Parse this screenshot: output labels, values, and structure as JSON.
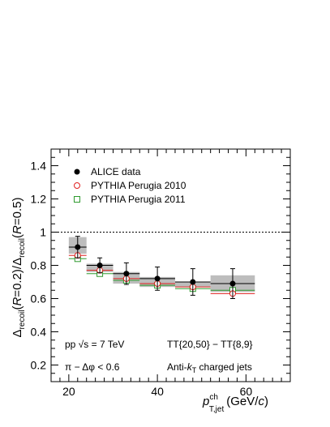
{
  "chart_data": {
    "type": "scatter",
    "xlim": [
      16,
      70
    ],
    "ylim": [
      0.1,
      1.5
    ],
    "x_ticks": [
      20,
      40,
      60
    ],
    "y_ticks": [
      0.2,
      0.4,
      0.6,
      0.8,
      1,
      1.2,
      1.4
    ],
    "xlabel": "p_T,jet^ch (GeV/c)",
    "ylabel": "Δrecoil(R=0.2)/Δrecoil(R=0.5)",
    "reference_line": 1,
    "legend_position": "top-left",
    "series": [
      {
        "name": "ALICE data",
        "marker": "filled-circle",
        "color": "#000000",
        "points": [
          {
            "x": 22.0,
            "xlo": 20,
            "xhi": 24,
            "y": 0.91,
            "stat": 0.065,
            "syslo": 0.87,
            "syshi": 0.97
          },
          {
            "x": 27.0,
            "xlo": 24,
            "xhi": 30,
            "y": 0.8,
            "stat": 0.045,
            "syslo": 0.76,
            "syshi": 0.81
          },
          {
            "x": 33.0,
            "xlo": 30,
            "xhi": 36,
            "y": 0.75,
            "stat": 0.065,
            "syslo": 0.69,
            "syshi": 0.76
          },
          {
            "x": 40.0,
            "xlo": 36,
            "xhi": 44,
            "y": 0.72,
            "stat": 0.07,
            "syslo": 0.67,
            "syshi": 0.73
          },
          {
            "x": 48.0,
            "xlo": 44,
            "xhi": 52,
            "y": 0.7,
            "stat": 0.08,
            "syslo": 0.67,
            "syshi": 0.7
          },
          {
            "x": 57.0,
            "xlo": 52,
            "xhi": 62,
            "y": 0.69,
            "stat": 0.09,
            "syslo": 0.64,
            "syshi": 0.74
          }
        ]
      },
      {
        "name": "PYTHIA Perugia 2010",
        "marker": "open-circle",
        "color": "#e02020",
        "points": [
          {
            "x": 22.0,
            "xlo": 20,
            "xhi": 24,
            "y": 0.86,
            "stat": 0.015
          },
          {
            "x": 27.0,
            "xlo": 24,
            "xhi": 30,
            "y": 0.77,
            "stat": 0.015
          },
          {
            "x": 33.0,
            "xlo": 30,
            "xhi": 36,
            "y": 0.72,
            "stat": 0.015
          },
          {
            "x": 40.0,
            "xlo": 36,
            "xhi": 44,
            "y": 0.69,
            "stat": 0.015
          },
          {
            "x": 48.0,
            "xlo": 44,
            "xhi": 52,
            "y": 0.67,
            "stat": 0.02
          },
          {
            "x": 57.0,
            "xlo": 52,
            "xhi": 62,
            "y": 0.63,
            "stat": 0.02
          }
        ]
      },
      {
        "name": "PYTHIA Perugia 2011",
        "marker": "open-square",
        "color": "#2e9a2e",
        "points": [
          {
            "x": 22.0,
            "xlo": 20,
            "xhi": 24,
            "y": 0.84,
            "stat": 0.015
          },
          {
            "x": 27.0,
            "xlo": 24,
            "xhi": 30,
            "y": 0.75,
            "stat": 0.015
          },
          {
            "x": 33.0,
            "xlo": 30,
            "xhi": 36,
            "y": 0.71,
            "stat": 0.015
          },
          {
            "x": 40.0,
            "xlo": 36,
            "xhi": 44,
            "y": 0.68,
            "stat": 0.015
          },
          {
            "x": 48.0,
            "xlo": 44,
            "xhi": 52,
            "y": 0.66,
            "stat": 0.02
          },
          {
            "x": 57.0,
            "xlo": 52,
            "xhi": 62,
            "y": 0.65,
            "stat": 0.02
          }
        ]
      }
    ],
    "annotations": {
      "energy": "pp √s = 7 TeV",
      "trigger": "TT{20,50} − TT{8,9}",
      "acoplanarity": "π − Δφ < 0.6",
      "jets": "Anti-kT charged jets"
    }
  },
  "colors": {
    "systematic_band": "#bdbdbd",
    "frame": "#000000"
  }
}
